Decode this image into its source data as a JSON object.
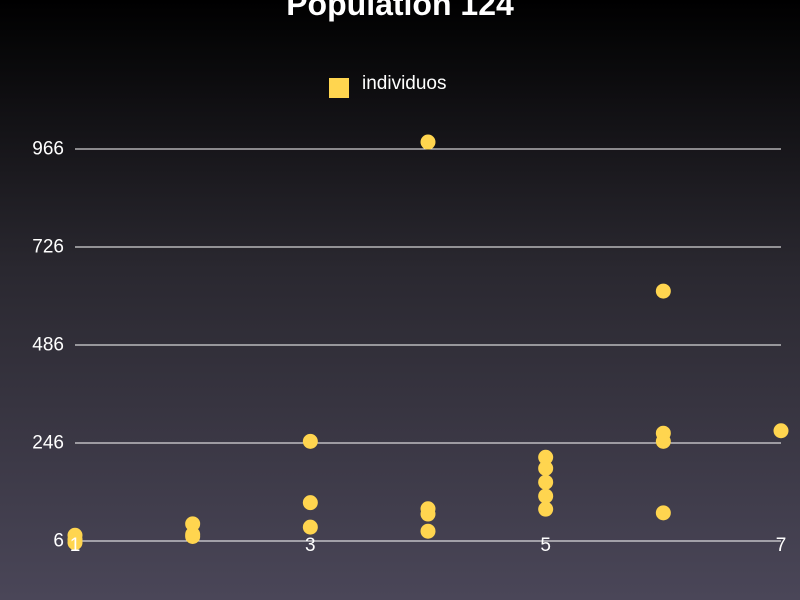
{
  "colors": {
    "point": "#ffd54f",
    "grid": "#ffffff",
    "text": "#ffffff"
  },
  "chart_data": {
    "type": "scatter",
    "title": "Population 124",
    "legend": {
      "placement": "top-center",
      "entries": [
        "individuos"
      ]
    },
    "grid": true,
    "xlim": [
      1,
      7
    ],
    "ylim": [
      6,
      966
    ],
    "x_ticks": [
      1,
      3,
      5,
      7
    ],
    "x_tick_labels": [
      "1",
      "3",
      "5",
      "7"
    ],
    "y_ticks": [
      6,
      246,
      486,
      726,
      966
    ],
    "y_tick_labels": [
      "6",
      "246",
      "486",
      "726",
      "966"
    ],
    "series": [
      {
        "name": "individuos",
        "points": [
          {
            "x": 1,
            "y": 20
          },
          {
            "x": 1,
            "y": 10
          },
          {
            "x": 1,
            "y": 2
          },
          {
            "x": 2,
            "y": 48
          },
          {
            "x": 2,
            "y": 22
          },
          {
            "x": 2,
            "y": 17
          },
          {
            "x": 3,
            "y": 250
          },
          {
            "x": 3,
            "y": 100
          },
          {
            "x": 3,
            "y": 40
          },
          {
            "x": 4,
            "y": 983
          },
          {
            "x": 4,
            "y": 85
          },
          {
            "x": 4,
            "y": 72
          },
          {
            "x": 4,
            "y": 30
          },
          {
            "x": 5,
            "y": 211
          },
          {
            "x": 5,
            "y": 184
          },
          {
            "x": 5,
            "y": 150
          },
          {
            "x": 5,
            "y": 116
          },
          {
            "x": 5,
            "y": 84
          },
          {
            "x": 6,
            "y": 618
          },
          {
            "x": 6,
            "y": 270
          },
          {
            "x": 6,
            "y": 250
          },
          {
            "x": 6,
            "y": 75
          },
          {
            "x": 7,
            "y": 276
          }
        ]
      }
    ]
  }
}
